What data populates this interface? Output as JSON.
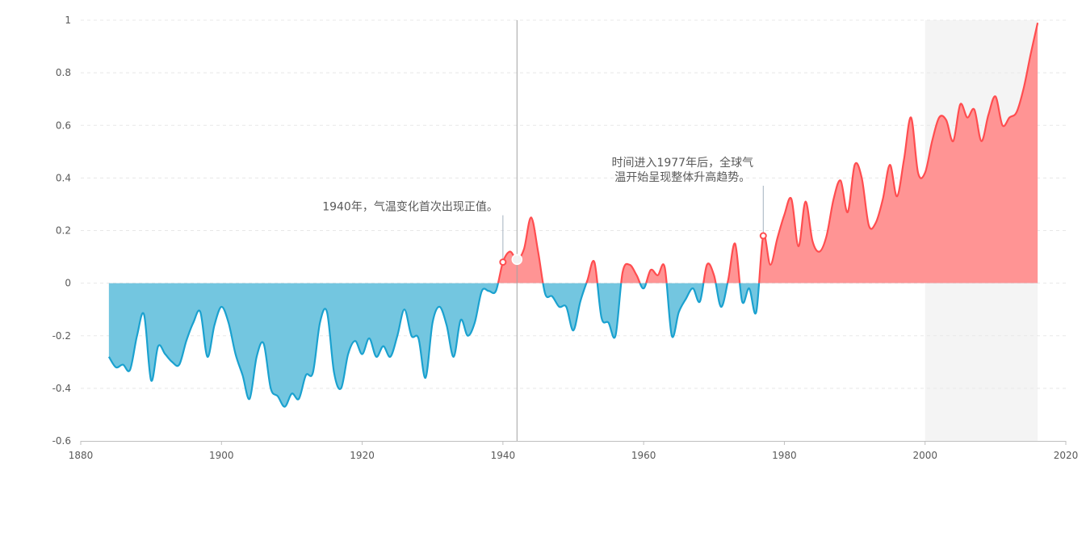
{
  "chart_data": {
    "type": "area",
    "title": "",
    "xlabel": "",
    "ylabel": "",
    "xlim": [
      1880,
      2020
    ],
    "ylim": [
      -0.6,
      1
    ],
    "x_ticks": [
      1880,
      1900,
      1920,
      1940,
      1960,
      1980,
      2000,
      2020
    ],
    "y_ticks": [
      -0.6,
      -0.4,
      -0.2,
      0,
      0.2,
      0.4,
      0.6,
      0.8,
      1
    ],
    "grid": "horizontal-dashed",
    "colors": {
      "positive_line": "#ff4d4f",
      "positive_fill": "#ff9494",
      "negative_line": "#1aa1cf",
      "negative_fill": "#73c6e0",
      "highlight_region": "#f4f4f4"
    },
    "highlight_region": [
      2000,
      2016
    ],
    "hover_year": 1942,
    "x": [
      1884,
      1885,
      1886,
      1887,
      1888,
      1889,
      1890,
      1891,
      1892,
      1893,
      1894,
      1895,
      1896,
      1897,
      1898,
      1899,
      1900,
      1901,
      1902,
      1903,
      1904,
      1905,
      1906,
      1907,
      1908,
      1909,
      1910,
      1911,
      1912,
      1913,
      1914,
      1915,
      1916,
      1917,
      1918,
      1919,
      1920,
      1921,
      1922,
      1923,
      1924,
      1925,
      1926,
      1927,
      1928,
      1929,
      1930,
      1931,
      1932,
      1933,
      1934,
      1935,
      1936,
      1937,
      1938,
      1939,
      1940,
      1941,
      1942,
      1943,
      1944,
      1945,
      1946,
      1947,
      1948,
      1949,
      1950,
      1951,
      1952,
      1953,
      1954,
      1955,
      1956,
      1957,
      1958,
      1959,
      1960,
      1961,
      1962,
      1963,
      1964,
      1965,
      1966,
      1967,
      1968,
      1969,
      1970,
      1971,
      1972,
      1973,
      1974,
      1975,
      1976,
      1977,
      1978,
      1979,
      1980,
      1981,
      1982,
      1983,
      1984,
      1985,
      1986,
      1987,
      1988,
      1989,
      1990,
      1991,
      1992,
      1993,
      1994,
      1995,
      1996,
      1997,
      1998,
      1999,
      2000,
      2001,
      2002,
      2003,
      2004,
      2005,
      2006,
      2007,
      2008,
      2009,
      2010,
      2011,
      2012,
      2013,
      2014,
      2015,
      2016
    ],
    "values": [
      -0.28,
      -0.32,
      -0.31,
      -0.33,
      -0.2,
      -0.12,
      -0.37,
      -0.24,
      -0.27,
      -0.3,
      -0.31,
      -0.22,
      -0.15,
      -0.11,
      -0.28,
      -0.16,
      -0.09,
      -0.15,
      -0.27,
      -0.35,
      -0.44,
      -0.28,
      -0.23,
      -0.4,
      -0.43,
      -0.47,
      -0.42,
      -0.44,
      -0.35,
      -0.34,
      -0.15,
      -0.11,
      -0.34,
      -0.4,
      -0.27,
      -0.22,
      -0.27,
      -0.21,
      -0.28,
      -0.24,
      -0.28,
      -0.2,
      -0.1,
      -0.2,
      -0.21,
      -0.36,
      -0.15,
      -0.09,
      -0.16,
      -0.28,
      -0.14,
      -0.2,
      -0.15,
      -0.03,
      -0.03,
      -0.03,
      0.08,
      0.12,
      0.09,
      0.13,
      0.25,
      0.12,
      -0.04,
      -0.05,
      -0.09,
      -0.09,
      -0.18,
      -0.07,
      0.01,
      0.08,
      -0.13,
      -0.15,
      -0.2,
      0.04,
      0.07,
      0.03,
      -0.02,
      0.05,
      0.03,
      0.06,
      -0.2,
      -0.11,
      -0.06,
      -0.02,
      -0.07,
      0.07,
      0.03,
      -0.09,
      0.01,
      0.15,
      -0.07,
      -0.02,
      -0.11,
      0.18,
      0.07,
      0.17,
      0.26,
      0.32,
      0.14,
      0.31,
      0.16,
      0.12,
      0.18,
      0.32,
      0.39,
      0.27,
      0.45,
      0.4,
      0.22,
      0.23,
      0.32,
      0.45,
      0.33,
      0.47,
      0.63,
      0.42,
      0.42,
      0.54,
      0.63,
      0.62,
      0.54,
      0.68,
      0.63,
      0.66,
      0.54,
      0.64,
      0.71,
      0.6,
      0.63,
      0.65,
      0.74,
      0.87,
      0.99
    ],
    "annotations": [
      {
        "year": 1940,
        "value": 0.08,
        "lines": [
          "1940年，气温变化首次出现正值。"
        ]
      },
      {
        "year": 1977,
        "value": 0.18,
        "lines": [
          "时间进入1977年后，全球气",
          "温开始呈现整体升高趋势。"
        ]
      }
    ]
  }
}
